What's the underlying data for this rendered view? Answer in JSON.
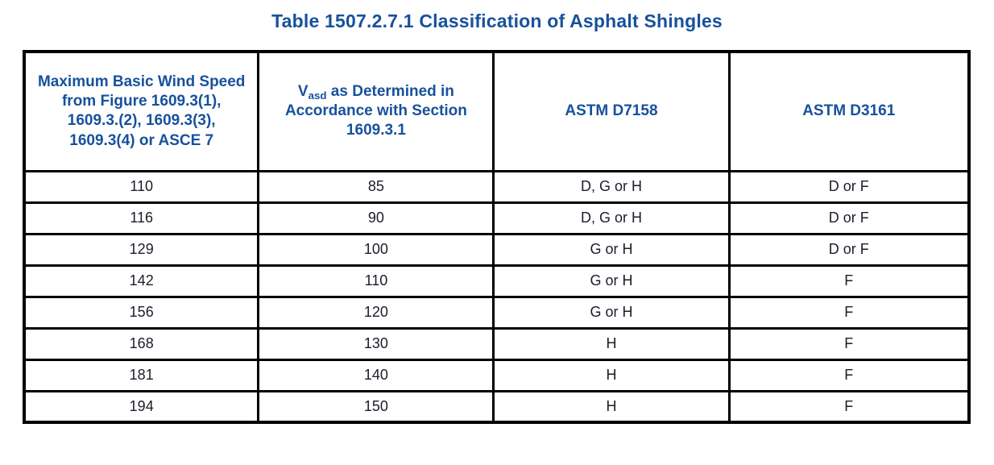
{
  "title": "Table 1507.2.7.1 Classification of Asphalt Shingles",
  "colors": {
    "header_text": "#17519c",
    "body_text": "#1d1d2b",
    "border": "#000000",
    "background": "#ffffff"
  },
  "table": {
    "headers": {
      "col1": "Maximum Basic Wind Speed from Figure 1609.3(1), 1609.3.(2), 1609.3(3), 1609.3(4) or ASCE 7",
      "col2_prefix": "V",
      "col2_sub": "asd",
      "col2_rest": " as Determined in Accordance with Section 1609.3.1",
      "col3": "ASTM D7158",
      "col4": "ASTM D3161"
    },
    "rows": [
      [
        "110",
        "85",
        "D, G or H",
        "D or F"
      ],
      [
        "116",
        "90",
        "D, G or H",
        "D or F"
      ],
      [
        "129",
        "100",
        "G or H",
        "D or F"
      ],
      [
        "142",
        "110",
        "G or H",
        "F"
      ],
      [
        "156",
        "120",
        "G or H",
        "F"
      ],
      [
        "168",
        "130",
        "H",
        "F"
      ],
      [
        "181",
        "140",
        "H",
        "F"
      ],
      [
        "194",
        "150",
        "H",
        "F"
      ]
    ]
  }
}
